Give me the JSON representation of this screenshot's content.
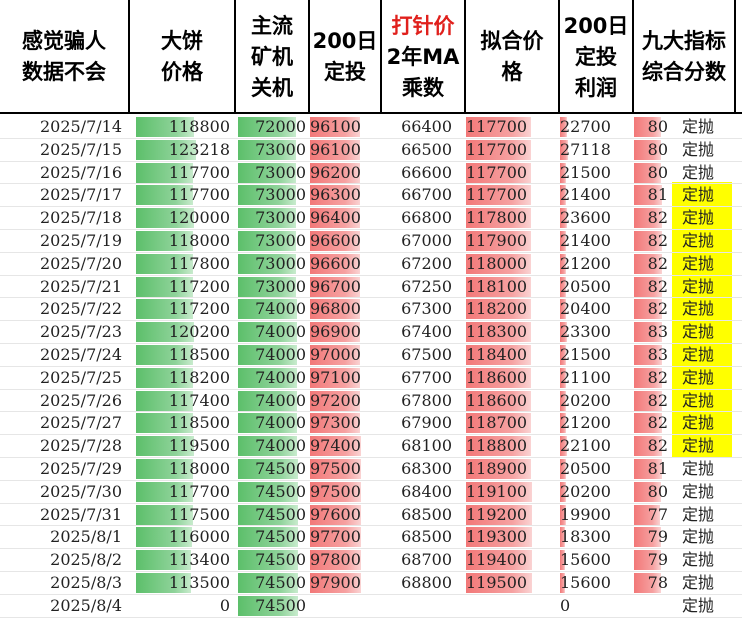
{
  "headers": {
    "col1": [
      "感觉骗人",
      "数据不会"
    ],
    "col2": [
      "大饼",
      "价格"
    ],
    "col3": [
      "主流",
      "矿机",
      "关机"
    ],
    "col4": [
      "200日",
      "定投"
    ],
    "col5a": [
      "打针价"
    ],
    "col5b": [
      "2年MA",
      "乘数"
    ],
    "col6": [
      "拟合价",
      "格"
    ],
    "col7": [
      "200日",
      "定投",
      "利润"
    ],
    "col8": [
      "九大指标",
      "综合分数"
    ]
  },
  "colors": {
    "green_bar": "#5cbf6a",
    "red_bar": "#f27878",
    "highlight": "#ffff00",
    "header_red": "#e0201c"
  },
  "rows": [
    {
      "date": "2025/7/14",
      "btc": "118800",
      "btc_fill": 0.62,
      "miner": "72000",
      "miner_fill": 0.85,
      "dca": "96100",
      "dca_fill": 0.8,
      "ma2": "66400",
      "fit": "117700",
      "fit_fill": 0.75,
      "profit": "22700",
      "profit_fill": 0.13,
      "score": "80",
      "score_fill": 0.8,
      "action": "定抛",
      "yellow": false
    },
    {
      "date": "2025/7/15",
      "btc": "123218",
      "btc_fill": 0.64,
      "miner": "73000",
      "miner_fill": 0.86,
      "dca": "96100",
      "dca_fill": 0.8,
      "ma2": "66500",
      "fit": "117700",
      "fit_fill": 0.75,
      "profit": "27118",
      "profit_fill": 0.16,
      "score": "80",
      "score_fill": 0.8,
      "action": "定抛",
      "yellow": false
    },
    {
      "date": "2025/7/16",
      "btc": "117700",
      "btc_fill": 0.61,
      "miner": "73000",
      "miner_fill": 0.86,
      "dca": "96200",
      "dca_fill": 0.8,
      "ma2": "66600",
      "fit": "117700",
      "fit_fill": 0.75,
      "profit": "21500",
      "profit_fill": 0.12,
      "score": "80",
      "score_fill": 0.8,
      "action": "定抛",
      "yellow": false
    },
    {
      "date": "2025/7/17",
      "btc": "117700",
      "btc_fill": 0.61,
      "miner": "73000",
      "miner_fill": 0.86,
      "dca": "96300",
      "dca_fill": 0.81,
      "ma2": "66700",
      "fit": "117700",
      "fit_fill": 0.75,
      "profit": "21400",
      "profit_fill": 0.12,
      "score": "81",
      "score_fill": 0.81,
      "action": "定抛",
      "yellow": true
    },
    {
      "date": "2025/7/18",
      "btc": "120000",
      "btc_fill": 0.62,
      "miner": "73000",
      "miner_fill": 0.86,
      "dca": "96400",
      "dca_fill": 0.81,
      "ma2": "66800",
      "fit": "117800",
      "fit_fill": 0.75,
      "profit": "23600",
      "profit_fill": 0.14,
      "score": "82",
      "score_fill": 0.82,
      "action": "定抛",
      "yellow": true
    },
    {
      "date": "2025/7/19",
      "btc": "118000",
      "btc_fill": 0.61,
      "miner": "73000",
      "miner_fill": 0.86,
      "dca": "96600",
      "dca_fill": 0.81,
      "ma2": "67000",
      "fit": "117900",
      "fit_fill": 0.75,
      "profit": "21400",
      "profit_fill": 0.12,
      "score": "82",
      "score_fill": 0.82,
      "action": "定抛",
      "yellow": true
    },
    {
      "date": "2025/7/20",
      "btc": "117800",
      "btc_fill": 0.61,
      "miner": "73000",
      "miner_fill": 0.86,
      "dca": "96600",
      "dca_fill": 0.81,
      "ma2": "67200",
      "fit": "118000",
      "fit_fill": 0.76,
      "profit": "21200",
      "profit_fill": 0.12,
      "score": "82",
      "score_fill": 0.82,
      "action": "定抛",
      "yellow": true
    },
    {
      "date": "2025/7/21",
      "btc": "117200",
      "btc_fill": 0.61,
      "miner": "73000",
      "miner_fill": 0.86,
      "dca": "96700",
      "dca_fill": 0.81,
      "ma2": "67250",
      "fit": "118100",
      "fit_fill": 0.76,
      "profit": "20500",
      "profit_fill": 0.12,
      "score": "82",
      "score_fill": 0.82,
      "action": "定抛",
      "yellow": true
    },
    {
      "date": "2025/7/22",
      "btc": "117200",
      "btc_fill": 0.61,
      "miner": "74000",
      "miner_fill": 0.87,
      "dca": "96800",
      "dca_fill": 0.81,
      "ma2": "67300",
      "fit": "118200",
      "fit_fill": 0.76,
      "profit": "20400",
      "profit_fill": 0.12,
      "score": "82",
      "score_fill": 0.82,
      "action": "定抛",
      "yellow": true
    },
    {
      "date": "2025/7/23",
      "btc": "120200",
      "btc_fill": 0.62,
      "miner": "74000",
      "miner_fill": 0.87,
      "dca": "96900",
      "dca_fill": 0.81,
      "ma2": "67400",
      "fit": "118300",
      "fit_fill": 0.76,
      "profit": "23300",
      "profit_fill": 0.14,
      "score": "83",
      "score_fill": 0.83,
      "action": "定抛",
      "yellow": true
    },
    {
      "date": "2025/7/24",
      "btc": "118500",
      "btc_fill": 0.61,
      "miner": "74000",
      "miner_fill": 0.87,
      "dca": "97000",
      "dca_fill": 0.81,
      "ma2": "67500",
      "fit": "118400",
      "fit_fill": 0.76,
      "profit": "21500",
      "profit_fill": 0.12,
      "score": "83",
      "score_fill": 0.83,
      "action": "定抛",
      "yellow": true
    },
    {
      "date": "2025/7/25",
      "btc": "118200",
      "btc_fill": 0.61,
      "miner": "74000",
      "miner_fill": 0.87,
      "dca": "97100",
      "dca_fill": 0.81,
      "ma2": "67700",
      "fit": "118600",
      "fit_fill": 0.76,
      "profit": "21100",
      "profit_fill": 0.12,
      "score": "82",
      "score_fill": 0.82,
      "action": "定抛",
      "yellow": true
    },
    {
      "date": "2025/7/26",
      "btc": "117400",
      "btc_fill": 0.61,
      "miner": "74000",
      "miner_fill": 0.87,
      "dca": "97200",
      "dca_fill": 0.81,
      "ma2": "67800",
      "fit": "118600",
      "fit_fill": 0.76,
      "profit": "20200",
      "profit_fill": 0.12,
      "score": "82",
      "score_fill": 0.82,
      "action": "定抛",
      "yellow": true
    },
    {
      "date": "2025/7/27",
      "btc": "118500",
      "btc_fill": 0.61,
      "miner": "74000",
      "miner_fill": 0.87,
      "dca": "97300",
      "dca_fill": 0.81,
      "ma2": "67900",
      "fit": "118700",
      "fit_fill": 0.76,
      "profit": "21200",
      "profit_fill": 0.12,
      "score": "82",
      "score_fill": 0.82,
      "action": "定抛",
      "yellow": true
    },
    {
      "date": "2025/7/28",
      "btc": "119500",
      "btc_fill": 0.62,
      "miner": "74000",
      "miner_fill": 0.87,
      "dca": "97400",
      "dca_fill": 0.82,
      "ma2": "68100",
      "fit": "118800",
      "fit_fill": 0.76,
      "profit": "22100",
      "profit_fill": 0.13,
      "score": "82",
      "score_fill": 0.82,
      "action": "定抛",
      "yellow": true
    },
    {
      "date": "2025/7/29",
      "btc": "118000",
      "btc_fill": 0.61,
      "miner": "74500",
      "miner_fill": 0.88,
      "dca": "97500",
      "dca_fill": 0.82,
      "ma2": "68300",
      "fit": "118900",
      "fit_fill": 0.76,
      "profit": "20500",
      "profit_fill": 0.12,
      "score": "81",
      "score_fill": 0.81,
      "action": "定抛",
      "yellow": false
    },
    {
      "date": "2025/7/30",
      "btc": "117700",
      "btc_fill": 0.61,
      "miner": "74500",
      "miner_fill": 0.88,
      "dca": "97500",
      "dca_fill": 0.82,
      "ma2": "68400",
      "fit": "119100",
      "fit_fill": 0.77,
      "profit": "20200",
      "profit_fill": 0.12,
      "score": "80",
      "score_fill": 0.8,
      "action": "定抛",
      "yellow": false
    },
    {
      "date": "2025/7/31",
      "btc": "117500",
      "btc_fill": 0.61,
      "miner": "74500",
      "miner_fill": 0.88,
      "dca": "97600",
      "dca_fill": 0.82,
      "ma2": "68500",
      "fit": "119200",
      "fit_fill": 0.77,
      "profit": "19900",
      "profit_fill": 0.11,
      "score": "77",
      "score_fill": 0.77,
      "action": "定抛",
      "yellow": false
    },
    {
      "date": "2025/8/1",
      "btc": "116000",
      "btc_fill": 0.6,
      "miner": "74500",
      "miner_fill": 0.88,
      "dca": "97700",
      "dca_fill": 0.82,
      "ma2": "68500",
      "fit": "119300",
      "fit_fill": 0.77,
      "profit": "18300",
      "profit_fill": 0.1,
      "score": "79",
      "score_fill": 0.79,
      "action": "定抛",
      "yellow": false
    },
    {
      "date": "2025/8/2",
      "btc": "113400",
      "btc_fill": 0.59,
      "miner": "74500",
      "miner_fill": 0.88,
      "dca": "97800",
      "dca_fill": 0.82,
      "ma2": "68700",
      "fit": "119400",
      "fit_fill": 0.77,
      "profit": "15600",
      "profit_fill": 0.09,
      "score": "79",
      "score_fill": 0.79,
      "action": "定抛",
      "yellow": false
    },
    {
      "date": "2025/8/3",
      "btc": "113500",
      "btc_fill": 0.59,
      "miner": "74500",
      "miner_fill": 0.88,
      "dca": "97900",
      "dca_fill": 0.82,
      "ma2": "68800",
      "fit": "119500",
      "fit_fill": 0.77,
      "profit": "15600",
      "profit_fill": 0.09,
      "score": "78",
      "score_fill": 0.78,
      "action": "定抛",
      "yellow": false
    },
    {
      "date": "2025/8/4",
      "btc": "0",
      "btc_fill": 0,
      "miner": "74500",
      "miner_fill": 0.88,
      "dca": "",
      "dca_fill": 0,
      "ma2": "",
      "fit": "",
      "fit_fill": 0,
      "profit": "0",
      "profit_fill": 0,
      "score": "",
      "score_fill": 0,
      "action": "定抛",
      "yellow": false
    }
  ]
}
